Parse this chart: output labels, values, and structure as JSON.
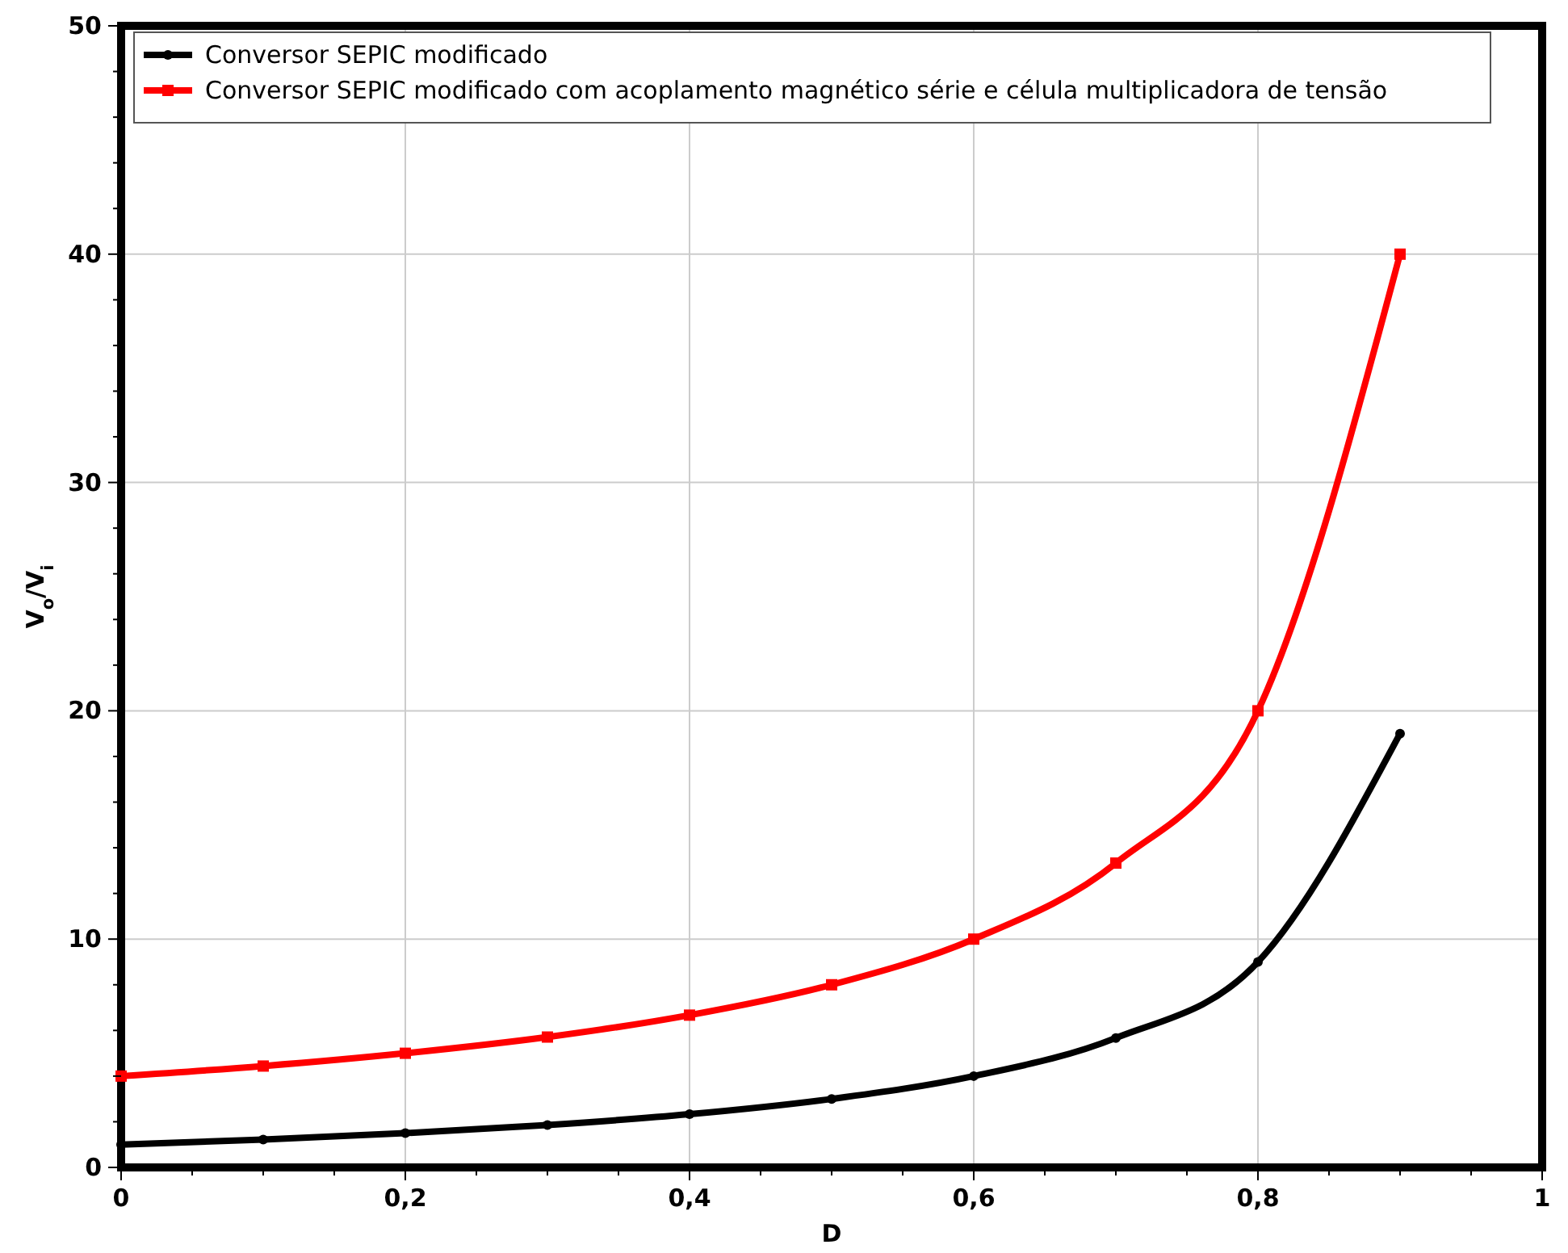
{
  "chart_data": {
    "type": "line",
    "xlabel": "D",
    "ylabel": "V$_{o}$/V$_{i}$",
    "x": [
      0,
      0.1,
      0.2,
      0.3,
      0.4,
      0.5,
      0.6,
      0.7,
      0.8,
      0.9
    ],
    "series": [
      {
        "name": "Conversor SEPIC modificado",
        "color": "#000000",
        "marker": "circle",
        "values": [
          1,
          1.22,
          1.5,
          1.86,
          2.33,
          3,
          4,
          5.67,
          9,
          19
        ]
      },
      {
        "name": "Conversor SEPIC modificado com acoplamento magnético série e célula multiplicadora de tensão",
        "color": "#ff0000",
        "marker": "square",
        "values": [
          4,
          4.44,
          5,
          5.71,
          6.67,
          8,
          10,
          13.33,
          20,
          40
        ]
      }
    ],
    "xlim": [
      0,
      1
    ],
    "ylim": [
      0,
      50
    ],
    "xticks": [
      {
        "value": 0,
        "label": "0"
      },
      {
        "value": 0.05,
        "label": null
      },
      {
        "value": 0.1,
        "label": null
      },
      {
        "value": 0.15,
        "label": null
      },
      {
        "value": 0.2,
        "label": "0,2"
      },
      {
        "value": 0.25,
        "label": null
      },
      {
        "value": 0.3,
        "label": null
      },
      {
        "value": 0.35,
        "label": null
      },
      {
        "value": 0.4,
        "label": "0,4"
      },
      {
        "value": 0.45,
        "label": null
      },
      {
        "value": 0.5,
        "label": null
      },
      {
        "value": 0.55,
        "label": null
      },
      {
        "value": 0.6,
        "label": "0,6"
      },
      {
        "value": 0.65,
        "label": null
      },
      {
        "value": 0.7,
        "label": null
      },
      {
        "value": 0.75,
        "label": null
      },
      {
        "value": 0.8,
        "label": "0,8"
      },
      {
        "value": 0.85,
        "label": null
      },
      {
        "value": 0.9,
        "label": null
      },
      {
        "value": 0.95,
        "label": null
      },
      {
        "value": 1,
        "label": "1"
      }
    ],
    "yticks": [
      0,
      {
        "value": 2,
        "label": null
      },
      {
        "value": 4,
        "label": null
      },
      {
        "value": 6,
        "label": null
      },
      {
        "value": 8,
        "label": null
      },
      10,
      {
        "value": 12,
        "label": null
      },
      {
        "value": 14,
        "label": null
      },
      {
        "value": 16,
        "label": null
      },
      {
        "value": 18,
        "label": null
      },
      20,
      {
        "value": 22,
        "label": null
      },
      {
        "value": 24,
        "label": null
      },
      {
        "value": 26,
        "label": null
      },
      {
        "value": 28,
        "label": null
      },
      30,
      {
        "value": 32,
        "label": null
      },
      {
        "value": 34,
        "label": null
      },
      {
        "value": 36,
        "label": null
      },
      {
        "value": 38,
        "label": null
      },
      40,
      {
        "value": 42,
        "label": null
      },
      {
        "value": 44,
        "label": null
      },
      {
        "value": 46,
        "label": null
      },
      {
        "value": 48,
        "label": null
      },
      50
    ],
    "grid": true,
    "legend": "top left",
    "line_style": "solid"
  }
}
